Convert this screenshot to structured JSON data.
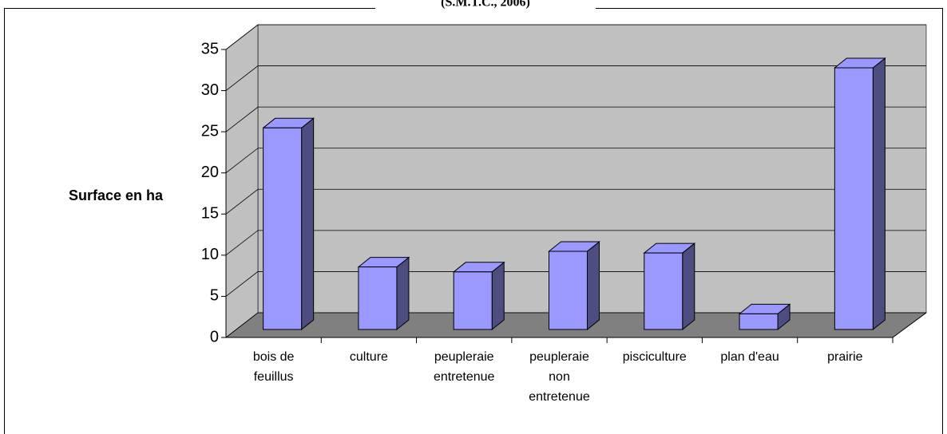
{
  "chart_data": {
    "type": "bar3d",
    "title": "(S.M.T.C., 2006)",
    "y_label": "Surface en ha",
    "categories": [
      "bois de feuillus",
      "culture",
      "peupleraie entretenue",
      "peupleraie non entretenue",
      "pisciculture",
      "plan d'eau",
      "prairie"
    ],
    "values": [
      24.5,
      7.6,
      7.0,
      9.5,
      9.3,
      1.9,
      31.8
    ],
    "color": "#9999ff",
    "side_color": "#4d4d80",
    "wall_color": "#c0c0c0",
    "floor_color": "#808080",
    "ylim": [
      0,
      35
    ],
    "yticks": [
      0,
      5,
      10,
      15,
      20,
      25,
      30,
      35
    ],
    "grid": true
  }
}
